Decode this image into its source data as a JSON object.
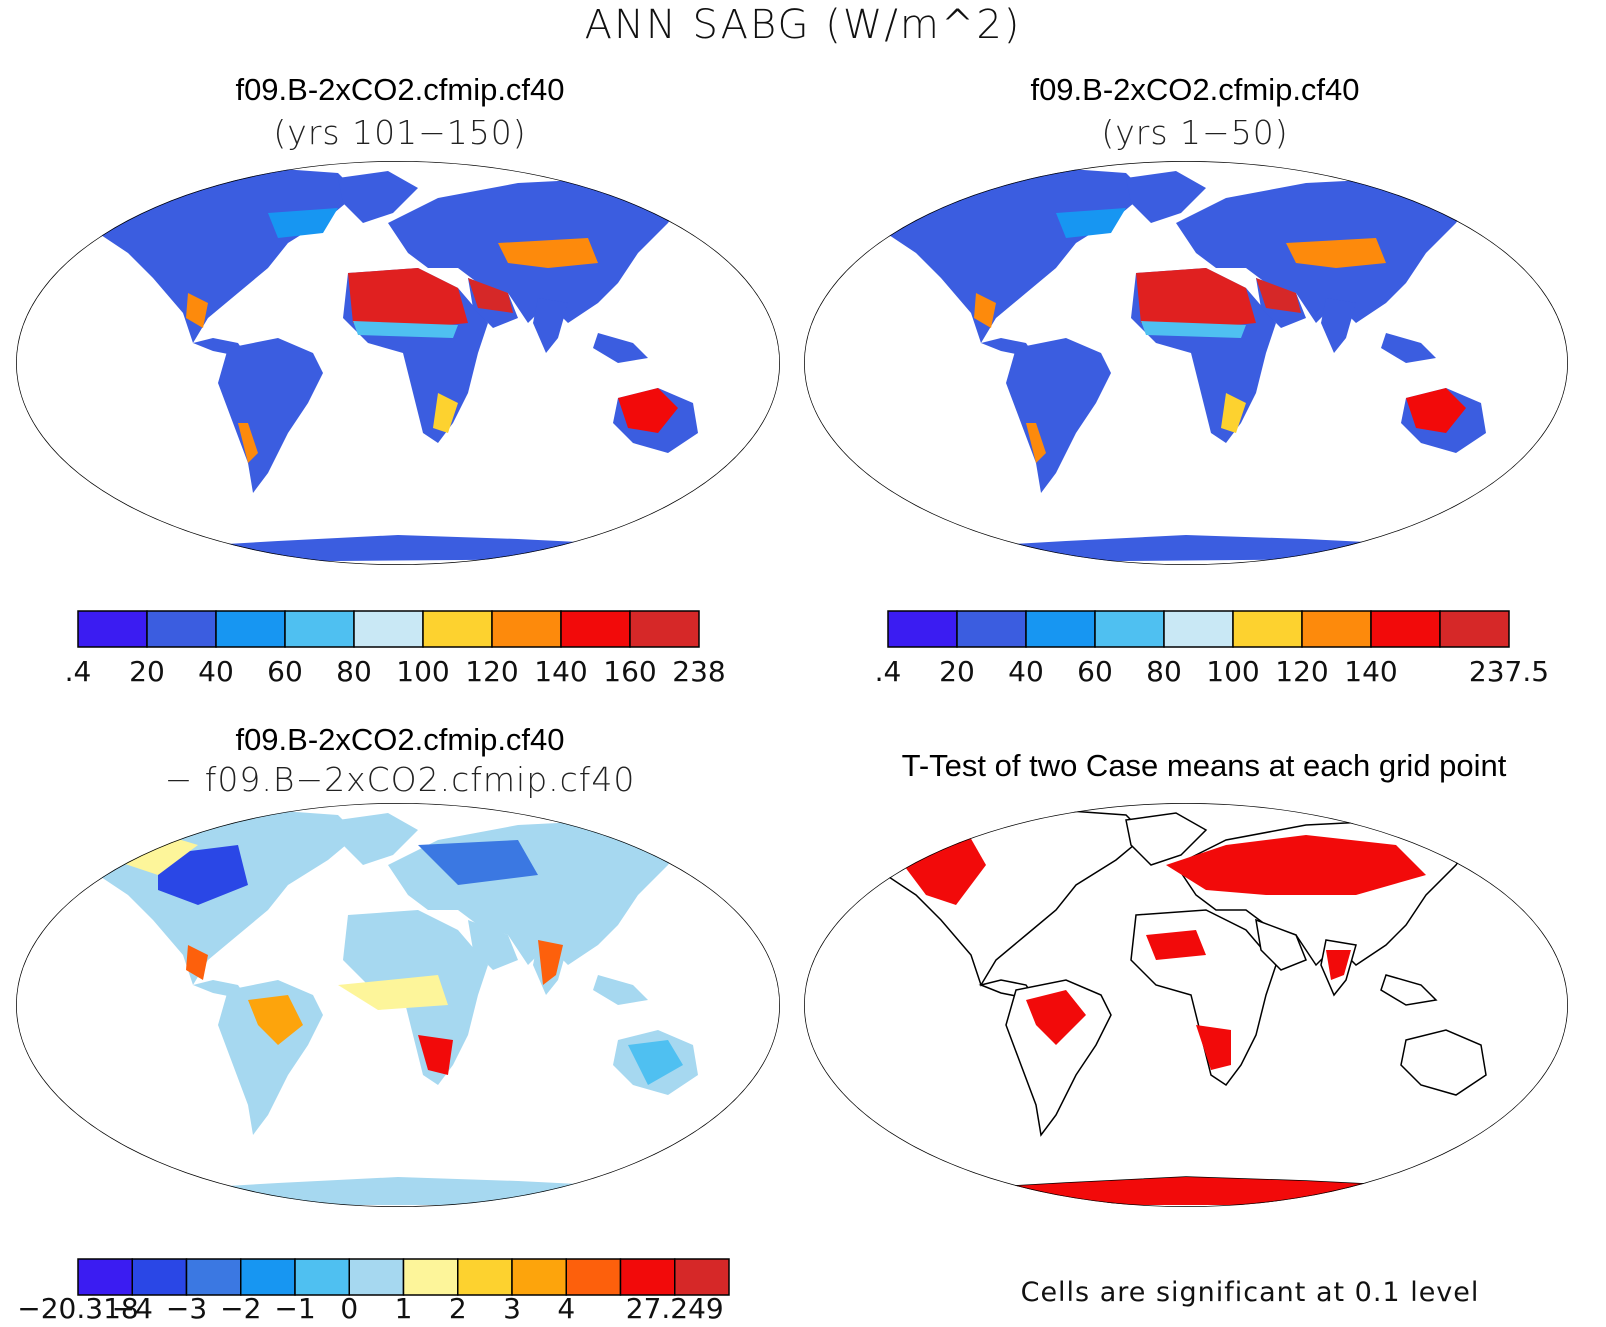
{
  "figure": {
    "title": "ANN SABG (W/m^2)"
  },
  "panels": [
    {
      "title": "f09.B-2xCO2.cfmip.cf40",
      "subtitle": "(yrs 101−150)",
      "colorbar": {
        "colors": [
          "#3b1cf2",
          "#3b5de0",
          "#1796f2",
          "#4fc0f1",
          "#c9e8f5",
          "#fdd22f",
          "#fd8a0c",
          "#f20a0a",
          "#d62828"
        ],
        "labels": [
          ".4",
          "20",
          "40",
          "60",
          "80",
          "100",
          "120",
          "140",
          "160",
          "238"
        ]
      }
    },
    {
      "title": "f09.B-2xCO2.cfmip.cf40",
      "subtitle": "(yrs 1−50)",
      "colorbar": {
        "colors": [
          "#3b1cf2",
          "#3b5de0",
          "#1796f2",
          "#4fc0f1",
          "#c9e8f5",
          "#fdd22f",
          "#fd8a0c",
          "#f20a0a",
          "#d62828"
        ],
        "labels": [
          ".4",
          "20",
          "40",
          "60",
          "80",
          "100",
          "120",
          "140",
          "",
          "237.5"
        ]
      }
    },
    {
      "title": "f09.B-2xCO2.cfmip.cf40",
      "subtitle": "− f09.B−2xCO2.cfmip.cf40",
      "colorbar": {
        "colors": [
          "#3b1cf2",
          "#2a47e6",
          "#3b78e2",
          "#1796f2",
          "#4fc0f1",
          "#a6d8f0",
          "#fdf59a",
          "#fdd22f",
          "#fda40c",
          "#fd600c",
          "#f20a0a",
          "#d62828"
        ],
        "labels": [
          "−20.318",
          "−4",
          "−3",
          "−2",
          "−1",
          "0",
          "1",
          "2",
          "3",
          "4",
          "",
          "27.249"
        ]
      }
    },
    {
      "title": "T-Test of two Case means at each grid point",
      "note": "Cells are significant at 0.1 level"
    }
  ]
}
